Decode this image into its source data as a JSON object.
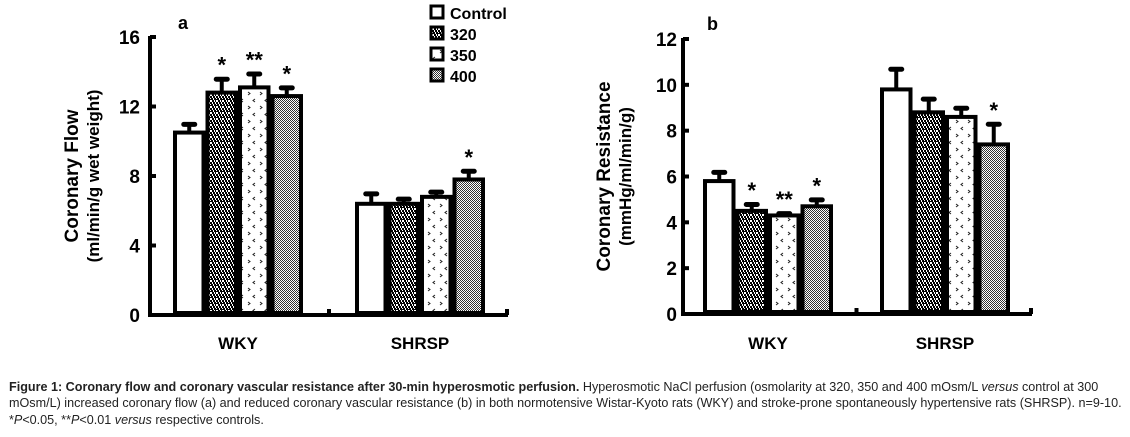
{
  "legend": {
    "items": [
      {
        "label": "Control",
        "pattern": "white"
      },
      {
        "label": "320",
        "pattern": "dense-check"
      },
      {
        "label": "350",
        "pattern": "chevron-dots"
      },
      {
        "label": "400",
        "pattern": "fine-grey"
      }
    ]
  },
  "chart_data": [
    {
      "type": "bar",
      "panel_label": "a",
      "title": "",
      "xlabel": "",
      "ylabel": "Coronary Flow",
      "ylabel_units": "(ml/min/g wet weight)",
      "ylim": [
        0,
        16
      ],
      "yticks": [
        0,
        4,
        8,
        12,
        16
      ],
      "categories": [
        "WKY",
        "SHRSP"
      ],
      "series": [
        {
          "name": "Control",
          "values": [
            10.5,
            6.4
          ],
          "errors": [
            0.5,
            0.6
          ],
          "significance": [
            "",
            ""
          ]
        },
        {
          "name": "320",
          "values": [
            12.8,
            6.4
          ],
          "errors": [
            0.8,
            0.3
          ],
          "significance": [
            "*",
            ""
          ]
        },
        {
          "name": "350",
          "values": [
            13.1,
            6.8
          ],
          "errors": [
            0.8,
            0.3
          ],
          "significance": [
            "**",
            ""
          ]
        },
        {
          "name": "400",
          "values": [
            12.6,
            7.8
          ],
          "errors": [
            0.5,
            0.5
          ],
          "significance": [
            "*",
            "*"
          ]
        }
      ],
      "grid": false,
      "legend_position": "top-right"
    },
    {
      "type": "bar",
      "panel_label": "b",
      "title": "",
      "xlabel": "",
      "ylabel": "Coronary Resistance",
      "ylabel_units": "(mmHg/ml/min/g)",
      "ylim": [
        0,
        12
      ],
      "yticks": [
        0,
        2,
        4,
        6,
        8,
        10,
        12
      ],
      "categories": [
        "WKY",
        "SHRSP"
      ],
      "series": [
        {
          "name": "Control",
          "values": [
            5.8,
            9.8
          ],
          "errors": [
            0.4,
            0.9
          ],
          "significance": [
            "",
            ""
          ]
        },
        {
          "name": "320",
          "values": [
            4.5,
            8.8
          ],
          "errors": [
            0.3,
            0.6
          ],
          "significance": [
            "*",
            ""
          ]
        },
        {
          "name": "350",
          "values": [
            4.3,
            8.6
          ],
          "errors": [
            0.1,
            0.4
          ],
          "significance": [
            "**",
            ""
          ]
        },
        {
          "name": "400",
          "values": [
            4.7,
            7.4
          ],
          "errors": [
            0.3,
            0.9
          ],
          "significance": [
            "*",
            "*"
          ]
        }
      ],
      "grid": false,
      "legend_position": "none"
    }
  ],
  "caption": {
    "label": "Figure 1: Coronary flow and coronary vascular resistance after 30-min hyperosmotic perfusion.",
    "text_1": " Hyperosmotic NaCl perfusion (osmolarity at 320, 350 and 400 mOsm/L ",
    "versus_1": "versus",
    "text_2": " control at 300 mOsm/L) increased coronary flow (a) and reduced coronary vascular resistance (b) in both normotensive Wistar-Kyoto rats (WKY) and stroke-prone spontaneously hypertensive rats (SHRSP). n=9-10. *",
    "p1": "P",
    "text_3": "<0.05, **",
    "p2": "P",
    "text_4": "<0.01 ",
    "versus_2": "versus",
    "text_5": " respective controls."
  }
}
